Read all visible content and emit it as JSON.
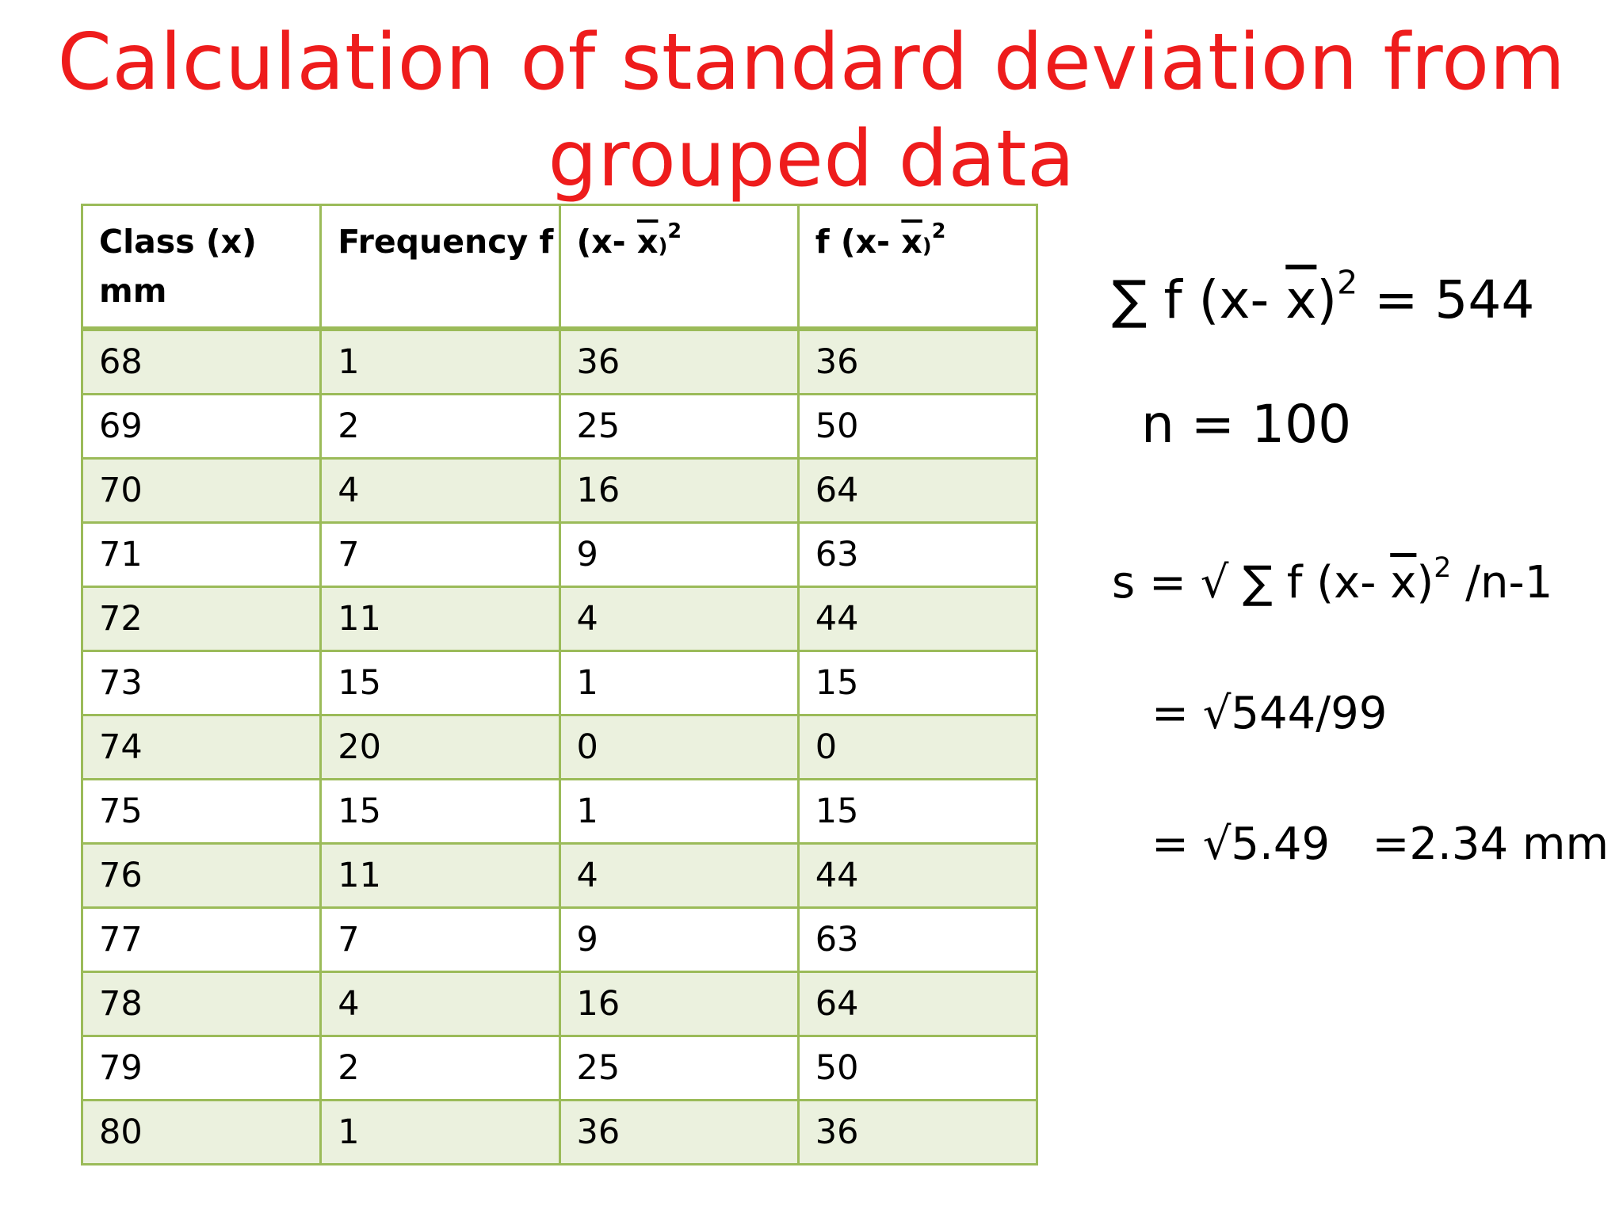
{
  "title": {
    "line1": "Calculation of standard deviation from",
    "line2": "grouped data"
  },
  "table": {
    "headers": [
      {
        "line1": "Class (x)",
        "line2": "mm"
      },
      {
        "line1": "Frequency f"
      },
      {
        "prefix": "(x- ",
        "xbar": "x",
        "paren": ")",
        "sup": "2"
      },
      {
        "prefix": "f (x- ",
        "xbar": "x",
        "paren": ")",
        "sup": "2"
      }
    ],
    "rows": [
      [
        "68",
        "1",
        "36",
        "36"
      ],
      [
        "69",
        "2",
        "25",
        "50"
      ],
      [
        "70",
        "4",
        "16",
        "64"
      ],
      [
        "71",
        "7",
        "9",
        "63"
      ],
      [
        "72",
        "11",
        "4",
        "44"
      ],
      [
        "73",
        "15",
        "1",
        "15"
      ],
      [
        "74",
        "20",
        "0",
        "0"
      ],
      [
        "75",
        "15",
        "1",
        "15"
      ],
      [
        "76",
        "11",
        "4",
        "44"
      ],
      [
        "77",
        "7",
        "9",
        "63"
      ],
      [
        "78",
        "4",
        "16",
        "64"
      ],
      [
        "79",
        "2",
        "25",
        "50"
      ],
      [
        "80",
        "1",
        "36",
        "36"
      ]
    ],
    "colors": {
      "border": "#9bbb59",
      "band": "#ebf1de"
    }
  },
  "formulas": {
    "sum": {
      "prefix": "∑ f (x- ",
      "xbar": "x",
      "close": ")",
      "sup": "2",
      "suffix": " = 544"
    },
    "n": "n = 100",
    "s": {
      "prefix": "s = √ ∑ f (x- ",
      "xbar": "x",
      "close": ")",
      "sup": "2",
      "suffix": " /n-1"
    },
    "step1": "= √544/99",
    "step2": "= √5.49   =2.34 mm"
  },
  "accent_color": "#ee1c1c"
}
